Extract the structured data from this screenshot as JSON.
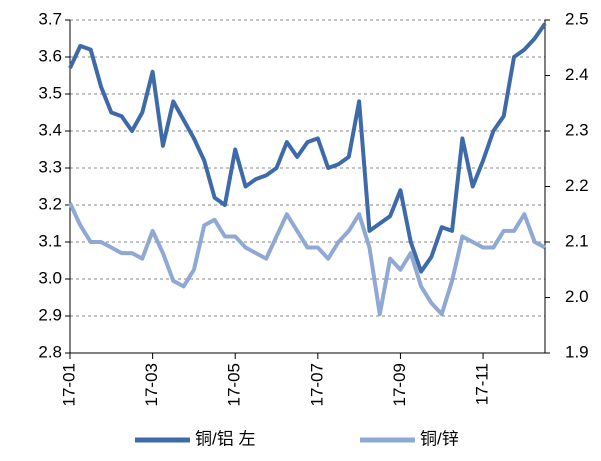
{
  "chart_data": {
    "type": "line",
    "categories": [
      "17-01",
      null,
      null,
      null,
      null,
      null,
      null,
      null,
      "17-03",
      null,
      null,
      null,
      null,
      null,
      null,
      null,
      "17-05",
      null,
      null,
      null,
      null,
      null,
      null,
      null,
      "17-07",
      null,
      null,
      null,
      null,
      null,
      null,
      null,
      "17-09",
      null,
      null,
      null,
      null,
      null,
      null,
      null,
      "17-11",
      null,
      null,
      null,
      null,
      null,
      null
    ],
    "series": [
      {
        "name": "铜/铝 左",
        "color": "#3f6aa9",
        "values": [
          3.57,
          3.63,
          3.62,
          3.52,
          3.45,
          3.44,
          3.4,
          3.45,
          3.56,
          3.36,
          3.48,
          3.43,
          3.38,
          3.32,
          3.22,
          3.2,
          3.35,
          3.25,
          3.27,
          3.28,
          3.3,
          3.37,
          3.33,
          3.37,
          3.38,
          3.3,
          3.31,
          3.33,
          3.48,
          3.13,
          3.15,
          3.17,
          3.24,
          3.1,
          3.02,
          3.06,
          3.14,
          3.13,
          3.38,
          3.25,
          3.32,
          3.4,
          3.44,
          3.6,
          3.62,
          3.65,
          3.69
        ]
      },
      {
        "name": "铜/锌",
        "color": "#8fa8d4",
        "axis": "y2",
        "values": [
          2.17,
          2.13,
          2.1,
          2.1,
          2.09,
          2.08,
          2.08,
          2.07,
          2.12,
          2.08,
          2.03,
          2.02,
          2.05,
          2.13,
          2.14,
          2.11,
          2.11,
          2.09,
          2.08,
          2.07,
          2.11,
          2.15,
          2.12,
          2.09,
          2.09,
          2.07,
          2.1,
          2.12,
          2.15,
          2.09,
          1.97,
          2.07,
          2.05,
          2.08,
          2.02,
          1.99,
          1.97,
          2.03,
          2.11,
          2.1,
          2.09,
          2.09,
          2.12,
          2.12,
          2.15,
          2.1,
          2.09
        ]
      }
    ],
    "ylim": [
      2.8,
      3.7
    ],
    "yticks": [
      2.8,
      2.9,
      {
        "value": 3,
        "label": "3.0"
      },
      3.1,
      3.2,
      3.3,
      3.4,
      3.5,
      3.6,
      3.7
    ],
    "y2lim": [
      1.9,
      2.5
    ],
    "y2ticks": [
      1.9,
      {
        "value": 2,
        "label": "2.0"
      },
      2.1,
      2.2,
      2.3,
      2.4,
      2.5
    ],
    "grid": true
  }
}
